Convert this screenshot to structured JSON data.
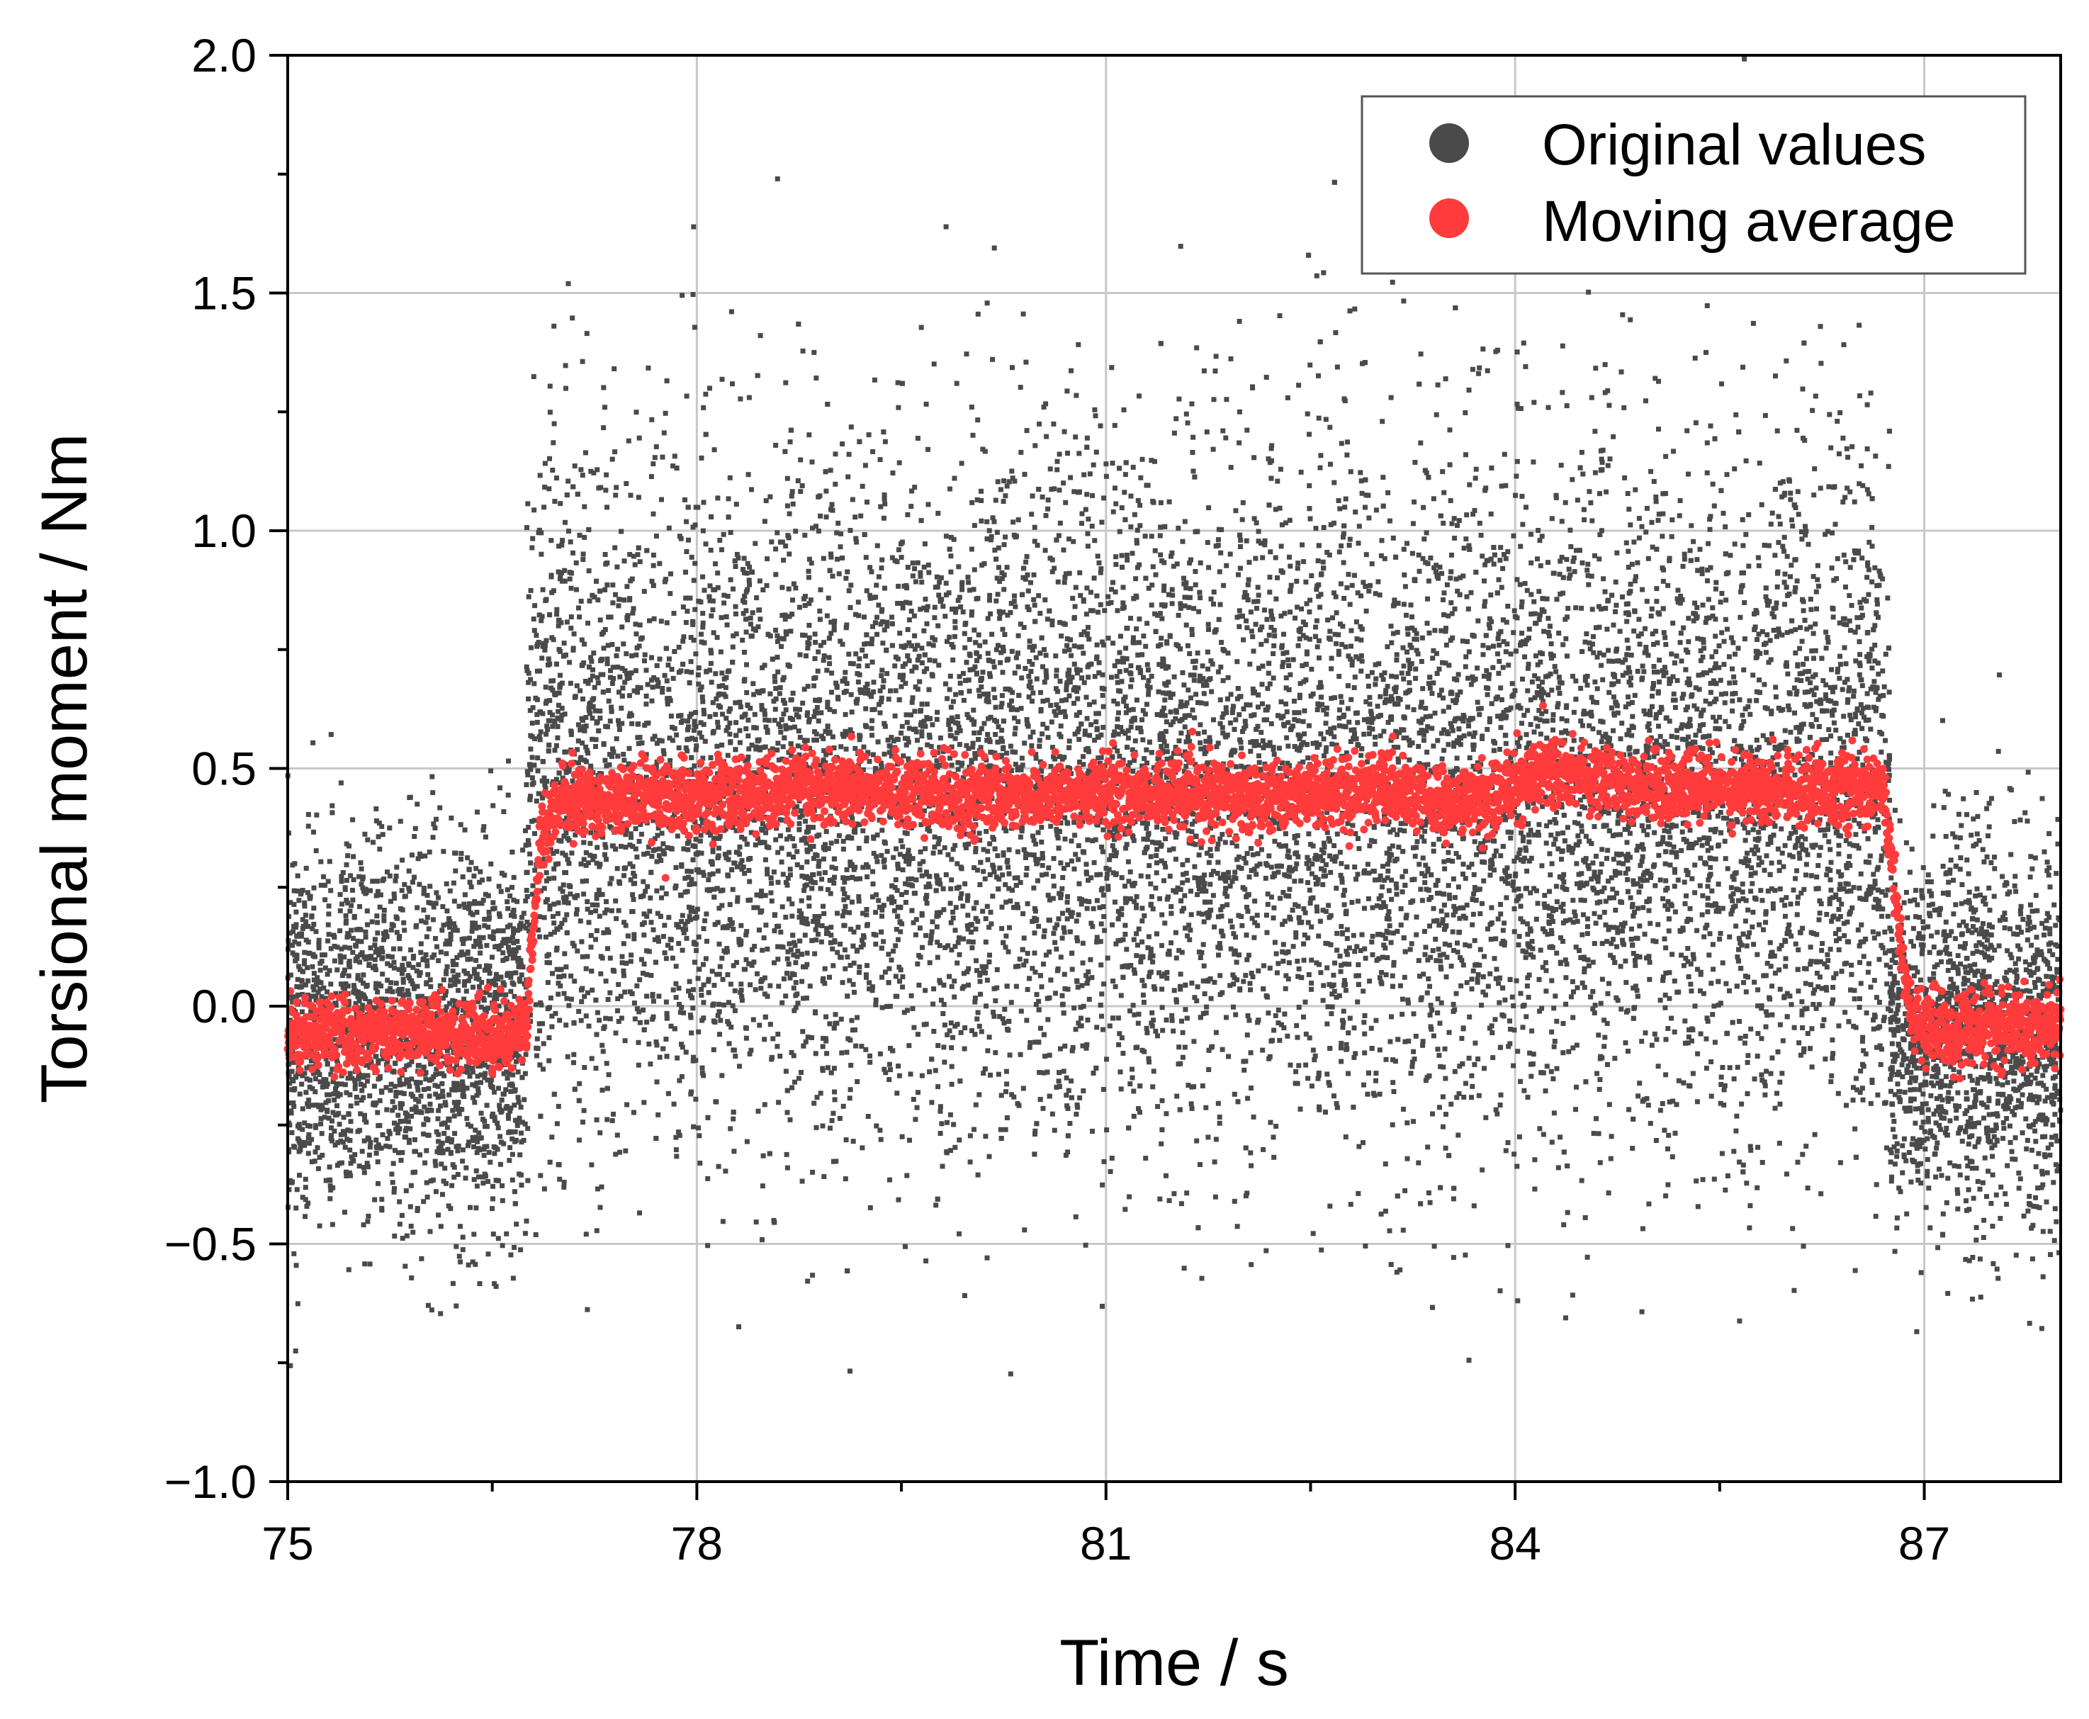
{
  "chart_data": {
    "type": "scatter",
    "title": "",
    "xlabel": "Time / s",
    "ylabel": "Torsional moment / Nm",
    "xlim": [
      75,
      88
    ],
    "ylim": [
      -1.0,
      2.0
    ],
    "x_ticks": [
      75,
      78,
      81,
      84,
      87
    ],
    "x_tick_labels": [
      "75",
      "78",
      "81",
      "84",
      "87"
    ],
    "x_minor_ticks": [
      76.5,
      79.5,
      82.5,
      85.5
    ],
    "y_ticks": [
      -1.0,
      -0.5,
      0.0,
      0.5,
      1.0,
      1.5,
      2.0
    ],
    "y_tick_labels": [
      "−1.0",
      "−0.5",
      "0.0",
      "0.5",
      "1.0",
      "1.5",
      "2.0"
    ],
    "y_minor_ticks": [
      -0.75,
      -0.25,
      0.25,
      0.75,
      1.25,
      1.75
    ],
    "grid": true,
    "legend_position": "top-right",
    "series": [
      {
        "name": "Original values",
        "color": "#4a4a4a",
        "segments": [
          {
            "x_start": 75.0,
            "x_end": 76.75,
            "mean": -0.06,
            "spread": 0.2
          },
          {
            "x_start": 76.75,
            "x_end": 86.75,
            "mean": 0.45,
            "spread": 0.36
          },
          {
            "x_start": 86.75,
            "x_end": 88.0,
            "mean": -0.06,
            "spread": 0.2
          }
        ],
        "points_per_second": 1150
      },
      {
        "name": "Moving average",
        "color": "#ff3b3b",
        "x": [
          75.0,
          75.5,
          76.0,
          76.5,
          76.75,
          76.85,
          77.0,
          78.0,
          79.0,
          80.0,
          81.0,
          82.0,
          83.0,
          83.5,
          84.0,
          84.2,
          85.0,
          86.0,
          86.7,
          86.9,
          87.0,
          87.5,
          88.0
        ],
        "y": [
          -0.06,
          -0.06,
          -0.05,
          -0.06,
          -0.05,
          0.35,
          0.43,
          0.44,
          0.46,
          0.44,
          0.45,
          0.44,
          0.46,
          0.42,
          0.46,
          0.5,
          0.46,
          0.46,
          0.45,
          -0.03,
          -0.05,
          -0.05,
          -0.04
        ],
        "noise": 0.035
      }
    ]
  }
}
